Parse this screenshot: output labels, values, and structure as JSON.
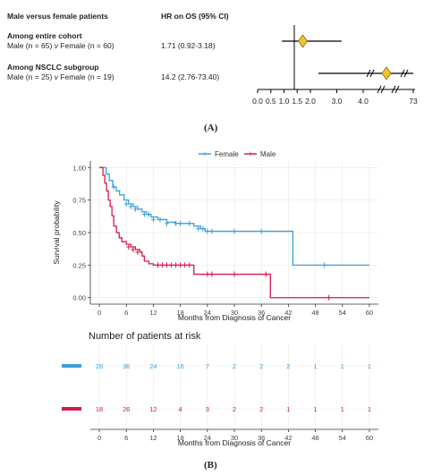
{
  "panel_a": {
    "header_left": "Male versus female patients",
    "header_right": "HR on OS (95% CI)",
    "label": "(A)",
    "rows": [
      {
        "group": "Among entire cohort",
        "comparison": "Male (n = 65) v Female (n = 60)",
        "hr_text": "1.71 (0.92-3.18)"
      },
      {
        "group": "Among NSCLC subgroup",
        "comparison": "Male (n = 25) v Female (n = 19)",
        "hr_text": "14.2 (2.76-73.40)"
      }
    ]
  },
  "panel_b": {
    "label": "(B)",
    "risk_title": "Number of patients at risk"
  },
  "chart_data": [
    {
      "type": "forest",
      "x_ticks": [
        "0.0",
        "0.5",
        "1.0",
        "1.5",
        "2.0",
        "3.0",
        "4.0",
        "73"
      ],
      "reference_line": 1.0,
      "point_color": "#f2c230",
      "estimates": [
        {
          "row": "Among entire cohort",
          "hr": 1.71,
          "ci": [
            0.92,
            3.18
          ]
        },
        {
          "row": "Among NSCLC subgroup",
          "hr": 14.2,
          "ci": [
            2.76,
            73.4
          ]
        }
      ]
    },
    {
      "type": "line",
      "subtype": "kaplan-meier",
      "legend": [
        "Female",
        "Male"
      ],
      "legend_position": "top",
      "xlabel": "Months from Diagnosis of Cancer",
      "ylabel": "Survival probability",
      "x_ticks": [
        0,
        6,
        12,
        18,
        24,
        30,
        36,
        42,
        48,
        54,
        60
      ],
      "y_ticks": [
        "0.00",
        "0.25",
        "0.50",
        "0.75",
        "1.00"
      ],
      "xlim": [
        -2,
        62
      ],
      "ylim": [
        -0.05,
        1.05
      ],
      "series": [
        {
          "name": "Female",
          "color": "#3a9fd8",
          "steps": [
            [
              0,
              1.0
            ],
            [
              1.5,
              0.95
            ],
            [
              2.2,
              0.9
            ],
            [
              3,
              0.85
            ],
            [
              3.8,
              0.82
            ],
            [
              4.5,
              0.79
            ],
            [
              5.5,
              0.75
            ],
            [
              6.5,
              0.72
            ],
            [
              7.5,
              0.7
            ],
            [
              8.5,
              0.68
            ],
            [
              9.5,
              0.66
            ],
            [
              10.5,
              0.64
            ],
            [
              11.5,
              0.62
            ],
            [
              13,
              0.6
            ],
            [
              15,
              0.58
            ],
            [
              17,
              0.57
            ],
            [
              21,
              0.55
            ],
            [
              22.5,
              0.53
            ],
            [
              23.5,
              0.51
            ],
            [
              43,
              0.25
            ],
            [
              62,
              0.25
            ]
          ],
          "censored": [
            [
              3.2,
              0.85
            ],
            [
              6,
              0.72
            ],
            [
              7,
              0.7
            ],
            [
              8,
              0.68
            ],
            [
              10,
              0.64
            ],
            [
              11,
              0.64
            ],
            [
              12,
              0.6
            ],
            [
              13.5,
              0.6
            ],
            [
              15,
              0.57
            ],
            [
              17,
              0.57
            ],
            [
              18,
              0.57
            ],
            [
              20,
              0.57
            ],
            [
              22,
              0.53
            ],
            [
              23,
              0.53
            ],
            [
              24,
              0.51
            ],
            [
              25,
              0.51
            ],
            [
              30,
              0.51
            ],
            [
              36,
              0.51
            ],
            [
              50,
              0.25
            ]
          ]
        },
        {
          "name": "Male",
          "color": "#d7194b",
          "steps": [
            [
              0,
              1.0
            ],
            [
              0.8,
              0.94
            ],
            [
              1.2,
              0.88
            ],
            [
              1.6,
              0.82
            ],
            [
              2,
              0.75
            ],
            [
              2.4,
              0.7
            ],
            [
              2.8,
              0.63
            ],
            [
              3.2,
              0.55
            ],
            [
              3.8,
              0.5
            ],
            [
              4.4,
              0.46
            ],
            [
              5,
              0.43
            ],
            [
              6,
              0.41
            ],
            [
              7,
              0.39
            ],
            [
              8,
              0.37
            ],
            [
              9,
              0.35
            ],
            [
              9.5,
              0.32
            ],
            [
              10,
              0.28
            ],
            [
              11,
              0.26
            ],
            [
              12,
              0.25
            ],
            [
              21,
              0.18
            ],
            [
              38,
              0.0
            ],
            [
              62,
              0.0
            ]
          ],
          "censored": [
            [
              6.5,
              0.39
            ],
            [
              7.5,
              0.37
            ],
            [
              8.5,
              0.35
            ],
            [
              13,
              0.25
            ],
            [
              14,
              0.25
            ],
            [
              15,
              0.25
            ],
            [
              16,
              0.25
            ],
            [
              17,
              0.25
            ],
            [
              18,
              0.25
            ],
            [
              19,
              0.25
            ],
            [
              20,
              0.25
            ],
            [
              24,
              0.18
            ],
            [
              25,
              0.18
            ],
            [
              30,
              0.18
            ],
            [
              37,
              0.18
            ],
            [
              51,
              0.0
            ]
          ]
        }
      ]
    },
    {
      "type": "table",
      "title": "Number of patients at risk",
      "xlabel": "Months from Diagnosis of Cancer",
      "x_ticks": [
        0,
        6,
        12,
        18,
        24,
        30,
        36,
        42,
        48,
        54,
        60
      ],
      "rows": [
        {
          "name": "Female",
          "color": "#3a9fd8",
          "values": [
            28,
            36,
            24,
            16,
            7,
            2,
            2,
            2,
            1,
            1,
            1
          ]
        },
        {
          "name": "Male",
          "color": "#d7194b",
          "values": [
            18,
            26,
            12,
            4,
            3,
            2,
            2,
            1,
            1,
            1,
            1
          ]
        }
      ]
    }
  ]
}
